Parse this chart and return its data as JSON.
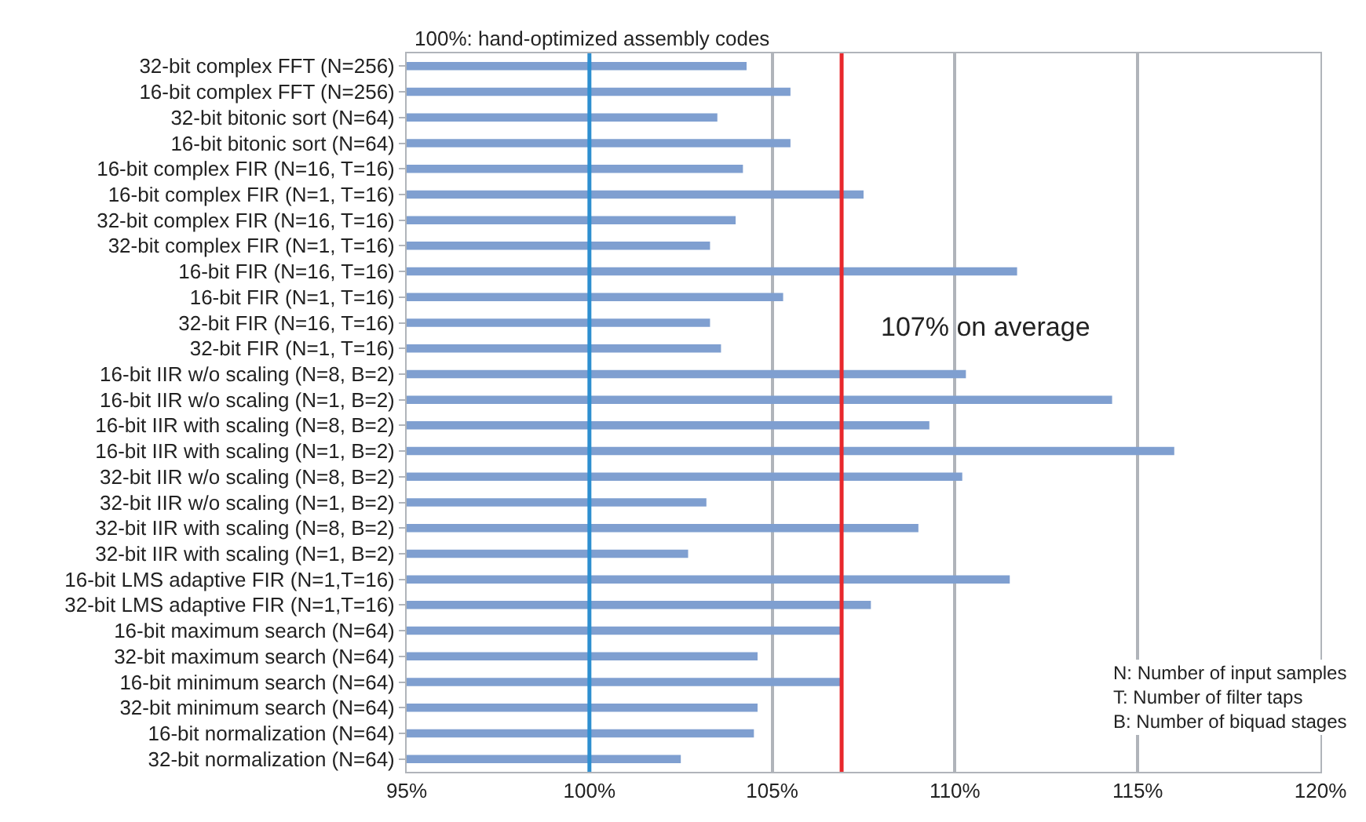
{
  "chart_data": {
    "type": "bar",
    "orientation": "horizontal",
    "categories": [
      "32-bit complex FFT (N=256)",
      "16-bit complex FFT (N=256)",
      "32-bit bitonic sort (N=64)",
      "16-bit bitonic sort (N=64)",
      "16-bit complex FIR (N=16, T=16)",
      "16-bit complex FIR (N=1, T=16)",
      "32-bit complex FIR (N=16, T=16)",
      "32-bit complex FIR (N=1, T=16)",
      "16-bit FIR (N=16, T=16)",
      "16-bit FIR (N=1, T=16)",
      "32-bit FIR (N=16, T=16)",
      "32-bit FIR (N=1, T=16)",
      "16-bit IIR w/o scaling (N=8, B=2)",
      "16-bit IIR w/o scaling (N=1, B=2)",
      "16-bit IIR with scaling (N=8, B=2)",
      "16-bit IIR with scaling (N=1, B=2)",
      "32-bit IIR w/o scaling (N=8, B=2)",
      "32-bit IIR w/o scaling (N=1, B=2)",
      "32-bit IIR with scaling (N=8, B=2)",
      "32-bit IIR with scaling (N=1, B=2)",
      "16-bit LMS adaptive FIR (N=1,T=16)",
      "32-bit LMS adaptive FIR (N=1,T=16)",
      "16-bit maximum search (N=64)",
      "32-bit maximum search (N=64)",
      "16-bit minimum search (N=64)",
      "32-bit minimum search (N=64)",
      "16-bit normalization (N=64)",
      "32-bit normalization (N=64)"
    ],
    "values": [
      104.3,
      105.5,
      103.5,
      105.5,
      104.2,
      107.5,
      104.0,
      103.3,
      111.7,
      105.3,
      103.3,
      103.6,
      110.3,
      114.3,
      109.3,
      116.0,
      110.2,
      103.2,
      109.0,
      102.7,
      111.5,
      107.7,
      106.9,
      104.6,
      106.9,
      104.6,
      104.5,
      102.5
    ],
    "color": "#7f9fd0",
    "xlim": [
      95,
      120
    ],
    "xticks": [
      {
        "value": 95,
        "label": "95%"
      },
      {
        "value": 100,
        "label": "100%"
      },
      {
        "value": 105,
        "label": "105%"
      },
      {
        "value": 110,
        "label": "110%"
      },
      {
        "value": 115,
        "label": "115%"
      },
      {
        "value": 120,
        "label": "120%"
      }
    ],
    "grid": "x",
    "ref_lines": [
      {
        "axis": "x",
        "value": 100,
        "label": "100%: hand-optimized assembly codes",
        "color": "#2e8fd0"
      },
      {
        "axis": "x",
        "value": 106.9,
        "label": "107% on average",
        "color": "#e8282c"
      }
    ],
    "annotations": [
      "N: Number of input samples",
      "T: Number of filter taps",
      "B: Number of biquad stages"
    ]
  }
}
